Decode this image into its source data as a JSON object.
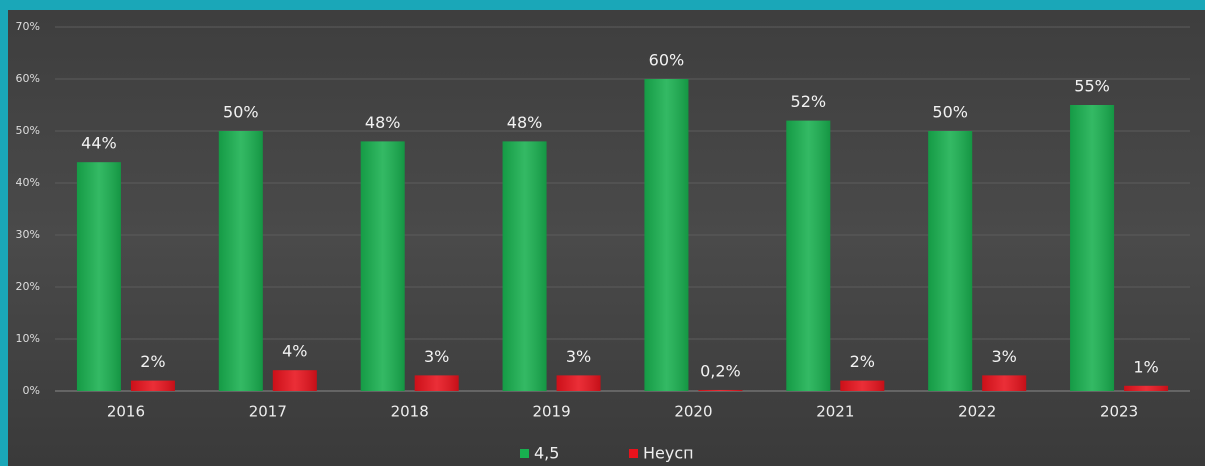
{
  "chart_data": {
    "type": "bar",
    "categories": [
      "2016",
      "2017",
      "2018",
      "2019",
      "2020",
      "2021",
      "2022",
      "2023"
    ],
    "series": [
      {
        "name": "4,5",
        "color": "#18b04f",
        "values": [
          44,
          50,
          48,
          48,
          60,
          52,
          50,
          55
        ],
        "value_labels": [
          "44%",
          "50%",
          "48%",
          "48%",
          "60%",
          "52%",
          "50%",
          "55%"
        ]
      },
      {
        "name": "Неусп",
        "color": "#e8121c",
        "values": [
          2,
          4,
          3,
          3,
          0.2,
          2,
          3,
          1
        ],
        "value_labels": [
          "2%",
          "4%",
          "3%",
          "3%",
          "0,2%",
          "2%",
          "3%",
          "1%"
        ]
      }
    ],
    "ylim": [
      0,
      70
    ],
    "yticks": [
      {
        "value": 0,
        "label": "0%"
      },
      {
        "value": 10,
        "label": "10%"
      },
      {
        "value": 20,
        "label": "20%"
      },
      {
        "value": 30,
        "label": "30%"
      },
      {
        "value": 40,
        "label": "40%"
      },
      {
        "value": 50,
        "label": "50%"
      },
      {
        "value": 60,
        "label": "60%"
      },
      {
        "value": 70,
        "label": "70%"
      }
    ],
    "grid": true,
    "legend": "bottom"
  }
}
